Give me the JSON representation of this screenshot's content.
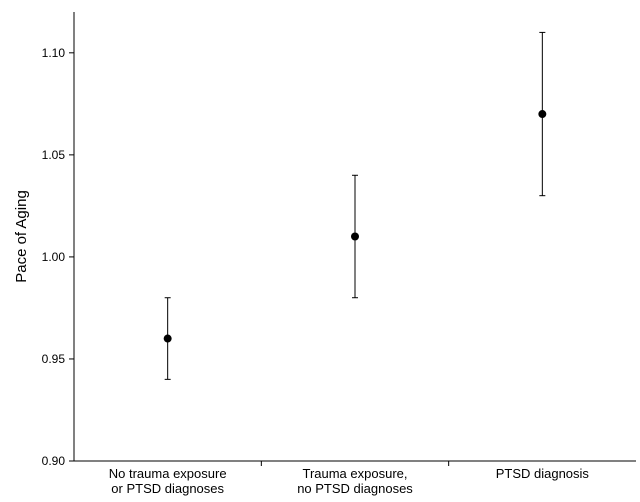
{
  "chart_data": {
    "type": "scatter",
    "title": "",
    "xlabel": "",
    "ylabel": "Pace of Aging",
    "categories": [
      [
        "No trauma exposure",
        "or PTSD diagnoses"
      ],
      [
        "Trauma exposure,",
        "no PTSD diagnoses"
      ],
      [
        "PTSD diagnosis"
      ]
    ],
    "values": [
      0.96,
      1.01,
      1.07
    ],
    "error_lower": [
      0.94,
      0.98,
      1.03
    ],
    "error_upper": [
      0.98,
      1.04,
      1.11
    ],
    "ylim": [
      0.9,
      1.12
    ],
    "yticks": [
      0.9,
      0.95,
      1.0,
      1.05,
      1.1
    ],
    "ytick_labels": [
      "0.90",
      "0.95",
      "1.00",
      "1.05",
      "1.10"
    ],
    "grid": false,
    "colors": {
      "marker": "#000000",
      "axis": "#000000"
    }
  }
}
